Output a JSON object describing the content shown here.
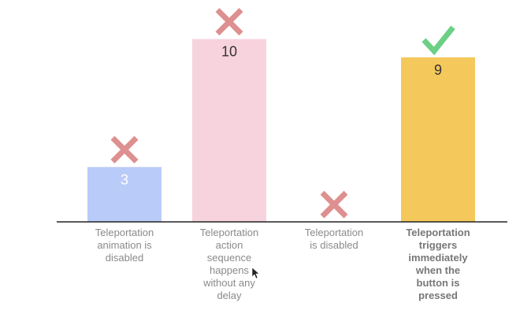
{
  "chart_data": {
    "type": "bar",
    "categories": [
      "Teleportation animation is disabled",
      "Teleportation action sequence happens without any delay",
      "Teleportation is disabled",
      "Teleportation triggers immediately when the button is pressed"
    ],
    "category_label_lines": [
      [
        "Teleportation",
        "animation is",
        "disabled"
      ],
      [
        "Teleportation",
        "action",
        "sequence",
        "happens",
        "without any",
        "delay"
      ],
      [
        "Teleportation",
        "is disabled"
      ],
      [
        "Teleportation",
        "triggers",
        "immediately",
        "when the",
        "button is",
        "pressed"
      ]
    ],
    "values": [
      3,
      10,
      0,
      9
    ],
    "value_labels": [
      "3",
      "10",
      "",
      "9"
    ],
    "ylim": [
      0,
      10.5
    ],
    "bar_colors": [
      "#b9cbf9",
      "#f7d3de",
      "#ffffff",
      "#f5c85b"
    ],
    "value_label_colors": [
      "#ffffff",
      "#333333",
      "#333333",
      "#333333"
    ],
    "markers": [
      "cross-icon",
      "cross-icon",
      "cross-icon",
      "check-icon"
    ],
    "marker_colors": {
      "cross": "#de8f8f",
      "check": "#6ccf86"
    },
    "highlighted_category_index": 3,
    "title": "",
    "xlabel": "",
    "ylabel": "",
    "grid": false,
    "legend": "none"
  }
}
